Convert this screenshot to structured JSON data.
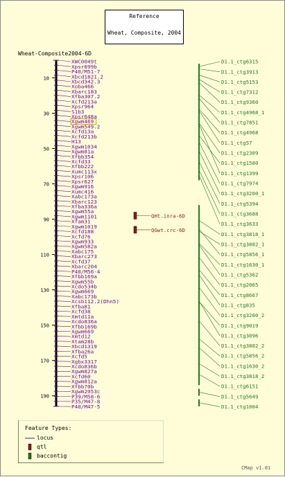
{
  "reference": {
    "title": "Reference",
    "subtitle": "Wheat, Composite, 2004"
  },
  "map_name": "Wheat-Composite2004-6D",
  "axis": {
    "min": 0,
    "max": 196,
    "ticks": [
      10,
      30,
      50,
      70,
      90,
      110,
      130,
      150,
      170,
      190
    ]
  },
  "markers": [
    "XWC0049t",
    "Xpsr899b",
    "P40/M51-7",
    "Xbcd1821.2",
    "Xbcd342.3",
    "Xoba466",
    "Xbarc183",
    "Xfba307.2",
    "Xcfd213a",
    "Xpsr964",
    "S1b3",
    "Xpsr648a",
    "Xgwm469",
    "Xgwm549.2",
    "Xcfd13a",
    "Xcfd213b",
    "H13",
    "Xgwm1034",
    "Xgwm81a",
    "Xfbb354",
    "Xcfd33",
    "Xfbb222",
    "Xumc113x",
    "Xpsr106",
    "Xpsr627",
    "Xgwm916",
    "Xumc416",
    "Xabc173a",
    "Xbarc123",
    "Xfba336a",
    "Xgwm55a",
    "Xgwm1101",
    "Xfam31",
    "Xgwm1019",
    "Xcfd188",
    "Xcfd76",
    "Xgwm933",
    "Xgwm582a",
    "Xabc175",
    "Xbarc273",
    "Xcfd37",
    "Xbarc204",
    "P40/M56-4",
    "Xfbb169a",
    "Xgwm55b",
    "Xcdo534b",
    "Xgwm669",
    "Xabc173b",
    "Xcsb112.2(Dhn5)",
    "Xfba81",
    "Xcfd38",
    "Xmtd11a",
    "Xcdo836a",
    "Xfbb169b",
    "Xgwm669",
    "Xmtd12",
    "Xtam28b",
    "Xbcd1319",
    "Xfba26a",
    "Xcfd5",
    "Xgbx3317",
    "Xcdo836b",
    "Xgwm827a",
    "Xcfd60",
    "Xgwm812a",
    "Xfbb70b",
    "Xgwm2053c",
    "P39/M58-6",
    "P35/M47-8",
    "P40/M47-5"
  ],
  "highlight_marker": "Xgwm469",
  "highlight_color": "#e0a000",
  "qtls": [
    {
      "name": "QHt.inra-6D",
      "position": 88
    },
    {
      "name": "QGwt.crc-6D",
      "position": 96
    }
  ],
  "contigs": [
    "D1.1_ctg6315",
    "D1.1_ctg3913",
    "D1.1_ctg5153",
    "D1.1_ctg7312",
    "D1.1_ctg9360",
    "D1.1_ctg4968_1",
    "D1.1_ctg7851",
    "D1.1_ctg4968",
    "D1.1_ctg57",
    "D1.1_ctg2309",
    "D1.1_ctg1580",
    "D1.1_ctg1399",
    "D1.1_ctg7974",
    "D1.1_ctg3200_1",
    "D1.1_ctg5394",
    "D1.1_ctg3688",
    "D1.1_ctg3633",
    "D1.1_ctg3818_1",
    "D1.1_ctg3802_1",
    "D1.1_ctg5856_1",
    "D1.1_ctg1630_1",
    "D1.1_ctg5362",
    "D1.1_ctg2065",
    "D1.1_ctg8667",
    "D1.1_ctg835",
    "D1.1_ctg3200_2",
    "D1.1_ctg9019",
    "D1.1_ctg3096",
    "D1.1_ctg3802_2",
    "D1.1_ctg5856_2",
    "D1.1_ctg1630_2",
    "D1.1_ctg3818_2",
    "D1.1_ctg6151",
    "D1.1_ctg5649",
    "D1.1_ctg1004"
  ],
  "contig_links": [
    [
      2,
      5
    ],
    [
      2,
      8
    ],
    [
      5,
      12
    ],
    [
      8,
      14
    ],
    [
      6,
      20
    ],
    [
      12,
      28
    ],
    [
      18,
      26
    ],
    [
      22,
      34
    ],
    [
      20,
      38
    ],
    [
      26,
      46
    ],
    [
      38,
      48
    ],
    [
      30,
      44
    ],
    [
      42,
      52
    ],
    [
      46,
      58
    ],
    [
      54,
      62
    ],
    [
      62,
      64
    ],
    [
      64,
      68
    ],
    [
      82,
      100
    ],
    [
      86,
      108
    ],
    [
      90,
      102
    ],
    [
      94,
      114
    ],
    [
      98,
      112
    ],
    [
      104,
      120
    ],
    [
      110,
      128
    ],
    [
      112,
      132
    ],
    [
      118,
      140
    ],
    [
      124,
      150
    ],
    [
      128,
      146
    ],
    [
      140,
      156
    ],
    [
      150,
      166
    ],
    [
      156,
      170
    ],
    [
      166,
      178
    ],
    [
      172,
      184
    ],
    [
      186,
      190
    ],
    [
      192,
      196
    ]
  ],
  "colors": {
    "background": "#fefdd8",
    "locus": "#6a0aa0",
    "qtl": "#8b1a1a",
    "contig": "#207a20",
    "axis": "#000000"
  },
  "legend": {
    "title": "Feature Types:",
    "items": [
      {
        "label": "locus",
        "shape": "line",
        "color": "#6a0aa0"
      },
      {
        "label": "qtl",
        "shape": "box",
        "color": "#8b1a1a"
      },
      {
        "label": "baccontig",
        "shape": "box",
        "color": "#207a20"
      }
    ]
  },
  "version": "CMap v1.01"
}
